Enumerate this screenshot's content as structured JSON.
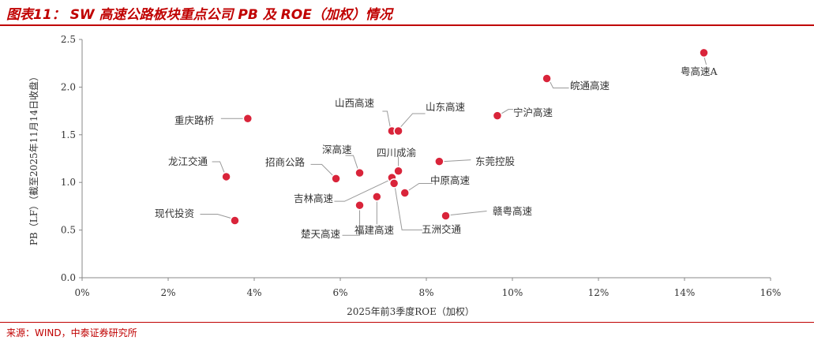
{
  "header": {
    "title": "图表11： SW 高速公路板块重点公司 PB 及 ROE（加权）情况"
  },
  "footer": {
    "source": "来源：WIND，中泰证券研究所"
  },
  "colors": {
    "accent": "#c00000",
    "point": "#d9243a"
  },
  "chart_data": {
    "type": "scatter",
    "xlabel": "2025年前3季度ROE（加权）",
    "ylabel": "PB（LF）（截至2025年11月14日收盘）",
    "xlim": [
      0,
      16
    ],
    "ylim": [
      0,
      2.5
    ],
    "xticks": [
      "0%",
      "2%",
      "4%",
      "6%",
      "8%",
      "10%",
      "12%",
      "14%",
      "16%"
    ],
    "yticks": [
      "0.0",
      "0.5",
      "1.0",
      "1.5",
      "2.0",
      "2.5"
    ],
    "grid": false,
    "points": [
      {
        "name": "粤高速A",
        "x": 14.45,
        "y": 2.36
      },
      {
        "name": "皖通高速",
        "x": 10.8,
        "y": 2.09
      },
      {
        "name": "宁沪高速",
        "x": 9.65,
        "y": 1.7
      },
      {
        "name": "重庆路桥",
        "x": 3.85,
        "y": 1.67
      },
      {
        "name": "山西高速",
        "x": 7.2,
        "y": 1.54
      },
      {
        "name": "山东高速",
        "x": 7.35,
        "y": 1.54
      },
      {
        "name": "东莞控股",
        "x": 8.3,
        "y": 1.22
      },
      {
        "name": "四川成渝",
        "x": 7.35,
        "y": 1.12
      },
      {
        "name": "深高速",
        "x": 6.45,
        "y": 1.1
      },
      {
        "name": "龙江交通",
        "x": 3.35,
        "y": 1.06
      },
      {
        "name": "招商公路",
        "x": 5.9,
        "y": 1.04
      },
      {
        "name": "吉林高速",
        "x": 7.2,
        "y": 1.05
      },
      {
        "name": "五洲交通",
        "x": 7.25,
        "y": 0.99
      },
      {
        "name": "中原高速",
        "x": 7.5,
        "y": 0.89
      },
      {
        "name": "福建高速",
        "x": 6.85,
        "y": 0.85
      },
      {
        "name": "楚天高速",
        "x": 6.45,
        "y": 0.76
      },
      {
        "name": "赣粤高速",
        "x": 8.45,
        "y": 0.65
      },
      {
        "name": "现代投资",
        "x": 3.55,
        "y": 0.6
      }
    ]
  }
}
